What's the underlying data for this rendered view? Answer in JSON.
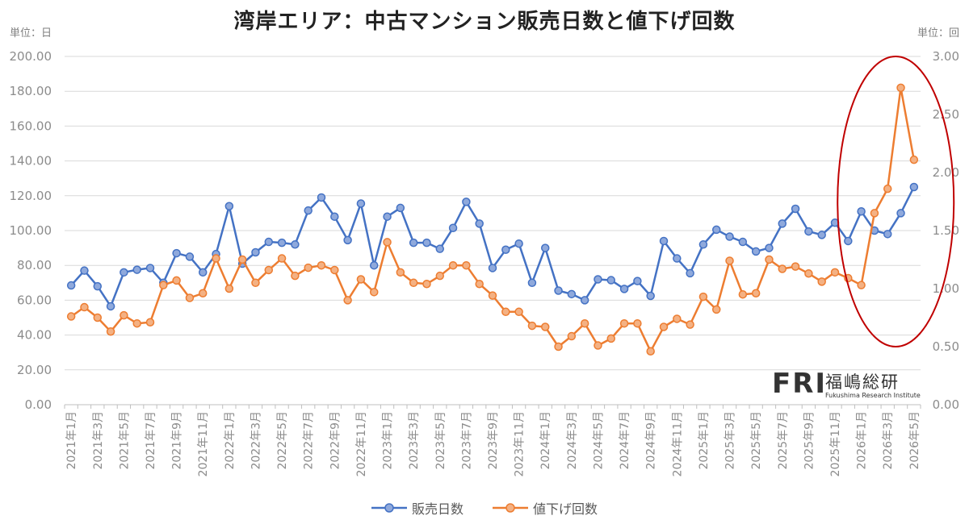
{
  "chart_data": {
    "type": "line",
    "title": "湾岸エリア：中古マンション販売日数と値下げ回数",
    "ylabel": "単位：日",
    "y2label": "単位：回",
    "ylim": [
      0,
      200
    ],
    "y2lim": [
      0,
      3
    ],
    "yticks": [
      "0.00",
      "20.00",
      "40.00",
      "60.00",
      "80.00",
      "100.00",
      "120.00",
      "140.00",
      "160.00",
      "180.00",
      "200.00"
    ],
    "y2ticks": [
      "0.00",
      "0.50",
      "1.00",
      "1.50",
      "2.00",
      "2.50",
      "3.00"
    ],
    "x": [
      "2021年1月",
      "2021年2月",
      "2021年3月",
      "2021年4月",
      "2021年5月",
      "2021年6月",
      "2021年7月",
      "2021年8月",
      "2021年9月",
      "2021年10月",
      "2021年11月",
      "2021年12月",
      "2022年1月",
      "2022年2月",
      "2022年3月",
      "2022年4月",
      "2022年5月",
      "2022年6月",
      "2022年7月",
      "2022年8月",
      "2022年9月",
      "2022年10月",
      "2022年11月",
      "2022年12月",
      "2023年1月",
      "2023年2月",
      "2023年3月",
      "2023年4月",
      "2023年5月",
      "2023年6月",
      "2023年7月",
      "2023年8月",
      "2023年9月",
      "2023年10月",
      "2023年11月",
      "2023年12月",
      "2024年1月",
      "2024年2月",
      "2024年3月",
      "2024年4月",
      "2024年5月",
      "2024年6月",
      "2024年7月",
      "2024年8月",
      "2024年9月",
      "2024年10月",
      "2024年11月",
      "2024年12月",
      "2025年1月",
      "2025年2月",
      "2025年3月",
      "2025年4月",
      "2025年5月",
      "2025年6月",
      "2025年7月",
      "2025年8月",
      "2025年9月",
      "2025年10月",
      "2025年11月",
      "2025年12月",
      "2026年1月",
      "2026年2月",
      "2026年3月",
      "2026年4月",
      "2026年5月"
    ],
    "xtick_labels": [
      "2021年1月",
      "2021年3月",
      "2021年5月",
      "2021年7月",
      "2021年9月",
      "2021年11月",
      "2022年1月",
      "2022年3月",
      "2022年5月",
      "2022年7月",
      "2022年9月",
      "2022年11月",
      "2023年1月",
      "2023年3月",
      "2023年5月",
      "2023年7月",
      "2023年9月",
      "2023年11月",
      "2024年1月",
      "2024年3月",
      "2024年5月",
      "2024年7月",
      "2024年9月",
      "2024年11月",
      "2025年1月",
      "2025年3月",
      "2025年5月",
      "2025年7月",
      "2025年9月",
      "2025年11月",
      "2026年1月",
      "2026年3月",
      "2026年5月"
    ],
    "series": [
      {
        "name": "販売日数",
        "axis": "left",
        "color": "#4472c4",
        "marker_fill": "#8fa9dc",
        "values": [
          68.5,
          77,
          68,
          56.5,
          76,
          77.5,
          78.5,
          70,
          87,
          85,
          76,
          86.5,
          114,
          81,
          87.5,
          93.5,
          93,
          92,
          111.5,
          119,
          108,
          94.5,
          115.5,
          80,
          108,
          113,
          93,
          93,
          89.5,
          101.5,
          116.5,
          104,
          78.5,
          89,
          92.5,
          70,
          90,
          65.5,
          63.5,
          60,
          72,
          71.5,
          66.5,
          71,
          62.5,
          94,
          84,
          75.5,
          92,
          100.5,
          96.5,
          93.5,
          88,
          90,
          104,
          112.5,
          99.5,
          97.5,
          104.5,
          94,
          111,
          100,
          98,
          110,
          125
        ]
      },
      {
        "name": "値下げ回数",
        "axis": "right",
        "color": "#ed7d31",
        "marker_fill": "#f4b183",
        "values": [
          0.76,
          0.84,
          0.75,
          0.63,
          0.77,
          0.7,
          0.71,
          1.03,
          1.07,
          0.92,
          0.96,
          1.26,
          1.0,
          1.25,
          1.05,
          1.16,
          1.26,
          1.11,
          1.18,
          1.2,
          1.16,
          0.9,
          1.08,
          0.97,
          1.4,
          1.14,
          1.05,
          1.04,
          1.11,
          1.2,
          1.2,
          1.04,
          0.94,
          0.8,
          0.8,
          0.68,
          0.67,
          0.5,
          0.59,
          0.7,
          0.51,
          0.57,
          0.7,
          0.7,
          0.46,
          0.67,
          0.74,
          0.69,
          0.93,
          0.82,
          1.24,
          0.95,
          0.96,
          1.25,
          1.17,
          1.19,
          1.13,
          1.06,
          1.14,
          1.09,
          1.03,
          1.65,
          1.86,
          2.73,
          2.11
        ]
      }
    ],
    "annotation": {
      "type": "ellipse",
      "color": "#c00000",
      "note": "highlight 2026 rise"
    },
    "grid": true,
    "legend": "bottom"
  },
  "logo": {
    "mark": "FRI",
    "name": "福嶋総研",
    "english": "Fukushima Research Institute"
  }
}
